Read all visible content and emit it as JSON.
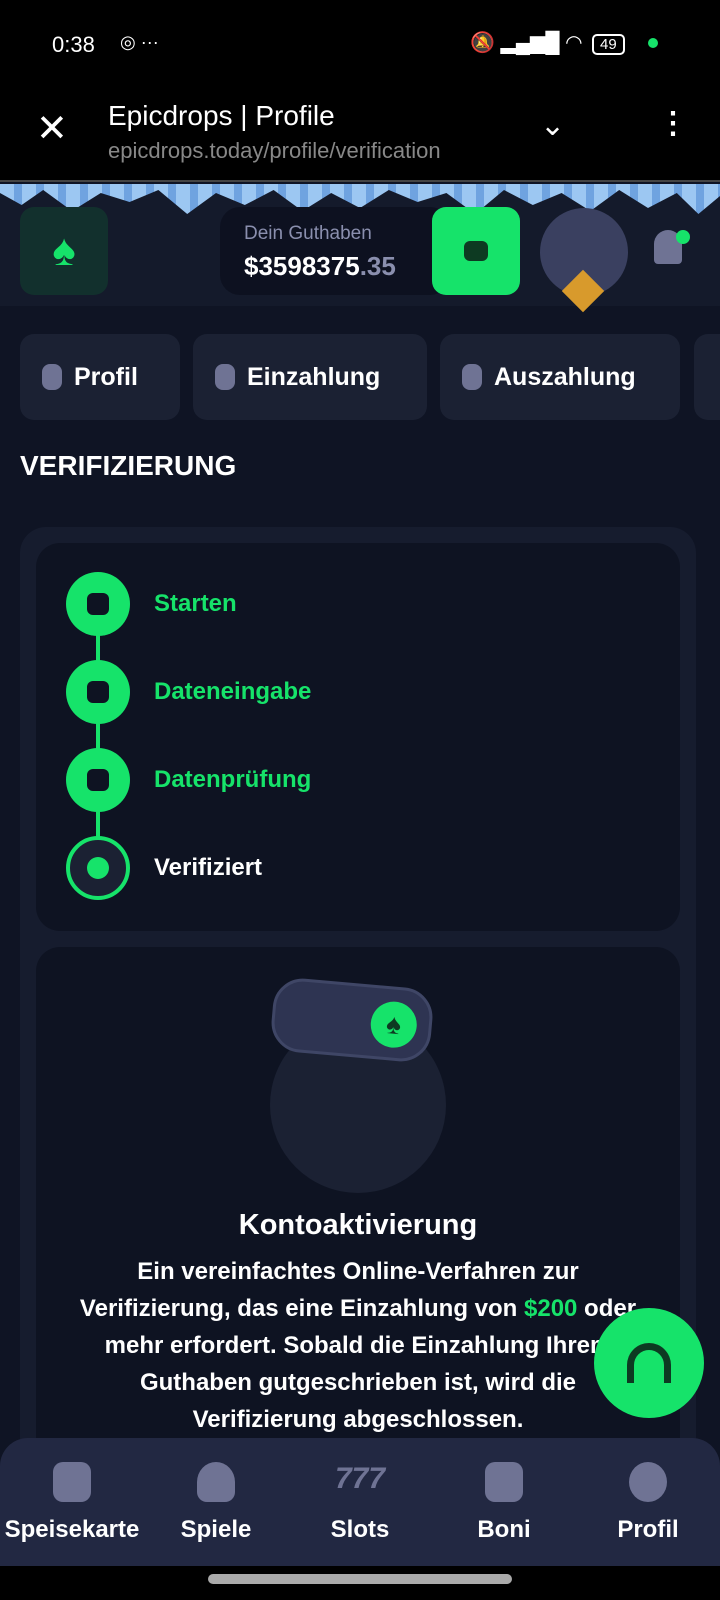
{
  "status_bar": {
    "time": "0:38",
    "battery": "49",
    "icons": [
      "chrome-icon",
      "more-icon",
      "mute-icon",
      "signal-icon",
      "wifi-icon",
      "battery-icon"
    ]
  },
  "browser": {
    "title": "Epicdrops | Profile",
    "url": "epicdrops.today/profile/verification"
  },
  "header": {
    "balance_label": "Dein Guthaben",
    "balance_main": "$3598375",
    "balance_cents": ".35",
    "accent": "#16e36a"
  },
  "tabs": [
    {
      "label": "Profil",
      "icon": "user-icon"
    },
    {
      "label": "Einzahlung",
      "icon": "wallet-plus-icon"
    },
    {
      "label": "Auszahlung",
      "icon": "wallet-minus-icon"
    }
  ],
  "page_title": "VERIFIZIERUNG",
  "steps": [
    {
      "label": "Starten",
      "done": true
    },
    {
      "label": "Dateneingabe",
      "done": true
    },
    {
      "label": "Datenprüfung",
      "done": true
    },
    {
      "label": "Verifiziert",
      "done": false
    }
  ],
  "activation": {
    "title": "Kontoaktivierung",
    "text_before": "Ein vereinfachtes Online-Verfahren zur Verifizierung, das eine Einzahlung von ",
    "amount": "$200",
    "text_after": " oder mehr erfordert. Sobald die Einzahlung Ihrem Guthaben gutgeschrieben ist, wird die Verifizierung abgeschlossen."
  },
  "bottom_nav": [
    {
      "label": "Speisekarte",
      "icon": "menu-icon"
    },
    {
      "label": "Spiele",
      "icon": "spade-icon"
    },
    {
      "label": "Slots",
      "icon": "slots-777-icon"
    },
    {
      "label": "Boni",
      "icon": "gift-icon"
    },
    {
      "label": "Profil",
      "icon": "user-icon"
    }
  ]
}
